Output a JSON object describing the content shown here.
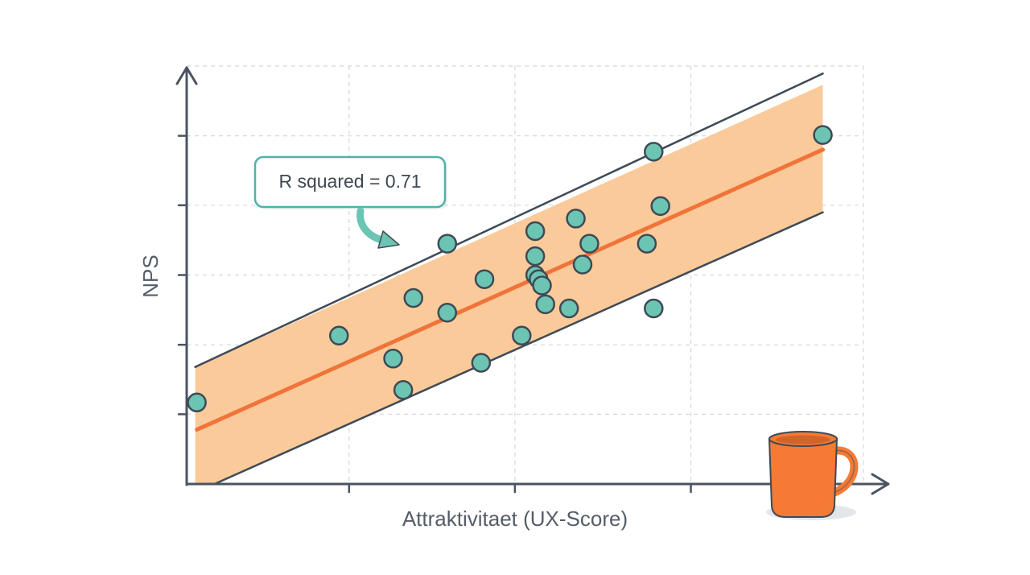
{
  "chart_data": {
    "type": "scatter",
    "title": "",
    "xlabel": "Attraktivitaet (UX-Score)",
    "ylabel": "NPS",
    "xlim": [
      0,
      100
    ],
    "ylim": [
      0,
      100
    ],
    "grid": true,
    "points": [
      {
        "x": 1.5,
        "y": 19.5
      },
      {
        "x": 22.5,
        "y": 35.5
      },
      {
        "x": 30.5,
        "y": 30.0
      },
      {
        "x": 32.0,
        "y": 22.5
      },
      {
        "x": 33.5,
        "y": 44.5
      },
      {
        "x": 38.5,
        "y": 57.5
      },
      {
        "x": 38.5,
        "y": 41.0
      },
      {
        "x": 43.5,
        "y": 29.0
      },
      {
        "x": 44.0,
        "y": 49.0
      },
      {
        "x": 49.5,
        "y": 35.5
      },
      {
        "x": 51.5,
        "y": 60.5
      },
      {
        "x": 51.5,
        "y": 54.5
      },
      {
        "x": 51.5,
        "y": 50.0
      },
      {
        "x": 52.0,
        "y": 49.0
      },
      {
        "x": 52.5,
        "y": 47.5
      },
      {
        "x": 53.0,
        "y": 43.0
      },
      {
        "x": 56.5,
        "y": 42.0
      },
      {
        "x": 57.5,
        "y": 63.5
      },
      {
        "x": 58.5,
        "y": 52.5
      },
      {
        "x": 59.5,
        "y": 57.5
      },
      {
        "x": 68.0,
        "y": 57.5
      },
      {
        "x": 69.0,
        "y": 79.5
      },
      {
        "x": 69.0,
        "y": 42.0
      },
      {
        "x": 70.0,
        "y": 66.5
      },
      {
        "x": 94.0,
        "y": 83.5
      }
    ],
    "fit": {
      "x": [
        1.5,
        94.0
      ],
      "y": [
        13.0,
        80.0
      ]
    },
    "ci_upper": {
      "x": [
        1.5,
        94.0
      ],
      "y": [
        28.0,
        95.5
      ]
    },
    "ci_lower": {
      "x": [
        1.5,
        94.0
      ],
      "y": [
        0.0,
        65.0
      ]
    },
    "annotation": {
      "text": "R squared = 0.71"
    },
    "colors": {
      "point_fill": "#6cc5b3",
      "point_stroke": "#3f4a56",
      "fit_line": "#f0743a",
      "band_fill": "#fbc48f",
      "band_edge": "#3f4a56",
      "axis": "#4b5361",
      "grid": "#d4d7dc",
      "annotation_border": "#4fb3a6",
      "mug": "#f47a35"
    },
    "decoration_icon": "coffee-mug-icon"
  }
}
